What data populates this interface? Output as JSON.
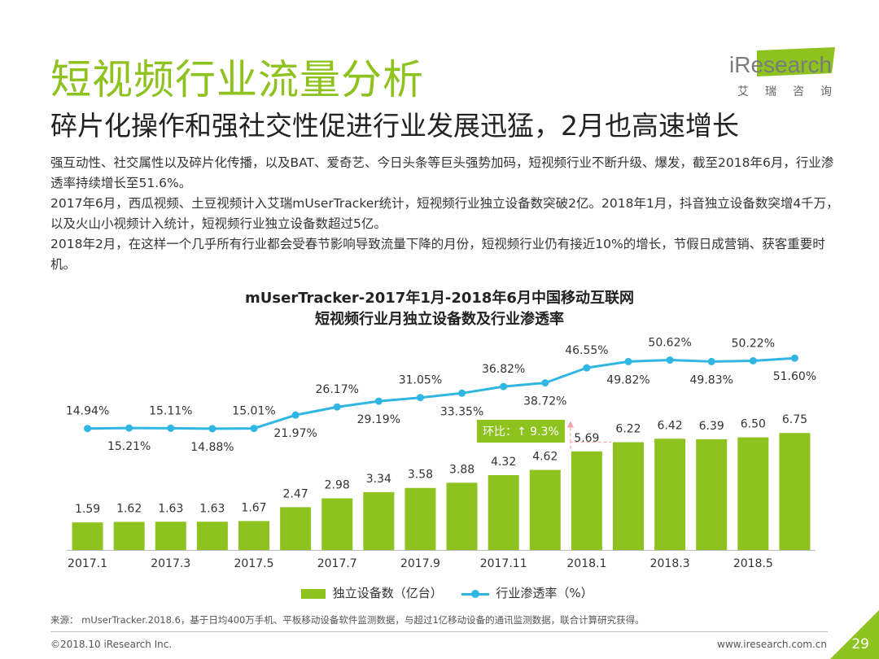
{
  "header": {
    "title": "短视频行业流量分析",
    "subtitle": "碎片化操作和强社交性促进行业发展迅猛，2月也高速增长"
  },
  "logo": {
    "brand": "iResearch",
    "cn": "艾瑞咨询"
  },
  "paragraphs": [
    "强互动性、社交属性以及碎片化传播，以及BAT、爱奇艺、今日头条等巨头强势加码，短视频行业不断升级、爆发，截至2018年6月，行业渗透率持续增长至51.6%。",
    "2017年6月，西瓜视频、土豆视频计入艾瑞mUserTracker统计，短视频行业独立设备数突破2亿。2018年1月，抖音独立设备数突增4千万，以及火山小视频计入统计，短视频行业独立设备数超过5亿。",
    "2018年2月，在这样一个几乎所有行业都会受春节影响导致流量下降的月份，短视频行业仍有接近10%的增长，节假日成营销、获客重要时机。"
  ],
  "chart_data": {
    "type": "bar+line",
    "title": "mUserTracker-2017年1月-2018年6月中国移动互联网",
    "subtitle": "短视频行业月独立设备数及行业渗透率",
    "categories": [
      "2017.1",
      "2017.2",
      "2017.3",
      "2017.4",
      "2017.5",
      "2017.6",
      "2017.7",
      "2017.8",
      "2017.9",
      "2017.10",
      "2017.11",
      "2017.12",
      "2018.1",
      "2018.2",
      "2018.3",
      "2018.4",
      "2018.5",
      "2018.6"
    ],
    "tick_labels": [
      "2017.1",
      "2017.3",
      "2017.5",
      "2017.7",
      "2017.9",
      "2017.11",
      "2018.1",
      "2018.3",
      "2018.5"
    ],
    "series": [
      {
        "name": "独立设备数（亿台）",
        "type": "bar",
        "color": "#8dc21f",
        "values": [
          1.59,
          1.62,
          1.63,
          1.63,
          1.67,
          2.47,
          2.98,
          3.34,
          3.58,
          3.88,
          4.32,
          4.62,
          5.69,
          6.22,
          6.42,
          6.39,
          6.5,
          6.75
        ]
      },
      {
        "name": "行业渗透率（%）",
        "type": "line",
        "color": "#2fb6e3",
        "values": [
          14.94,
          15.21,
          15.11,
          14.88,
          15.01,
          21.97,
          26.17,
          29.19,
          31.05,
          33.35,
          36.82,
          38.72,
          46.55,
          49.82,
          50.62,
          49.83,
          50.22,
          51.6
        ]
      }
    ],
    "bar_labels": [
      "1.59",
      "1.62",
      "1.63",
      "1.63",
      "1.67",
      "2.47",
      "2.98",
      "3.34",
      "3.58",
      "3.88",
      "4.32",
      "4.62",
      "5.69",
      "6.22",
      "6.42",
      "6.39",
      "6.50",
      "6.75"
    ],
    "line_labels": [
      "14.94%",
      "15.21%",
      "15.11%",
      "14.88%",
      "15.01%",
      "21.97%",
      "26.17%",
      "29.19%",
      "31.05%",
      "33.35%",
      "36.82%",
      "38.72%",
      "46.55%",
      "49.82%",
      "50.62%",
      "49.83%",
      "50.22%",
      "51.60%"
    ],
    "annotation": {
      "text": "环比：↑ 9.3%",
      "from_category": "2018.1",
      "to_category": "2018.2",
      "color": "#8dc21f"
    }
  },
  "footer": {
    "source": "来源： mUserTracker.2018.6，基于日均400万手机、平板移动设备软件监测数据，与超过1亿移动设备的通讯监测数据，联合计算研究获得。",
    "copyright": "©2018.10 iResearch Inc.",
    "site": "www.iresearch.com.cn",
    "page": "29"
  },
  "colors": {
    "accent": "#8dc21f",
    "line": "#2fb6e3"
  }
}
